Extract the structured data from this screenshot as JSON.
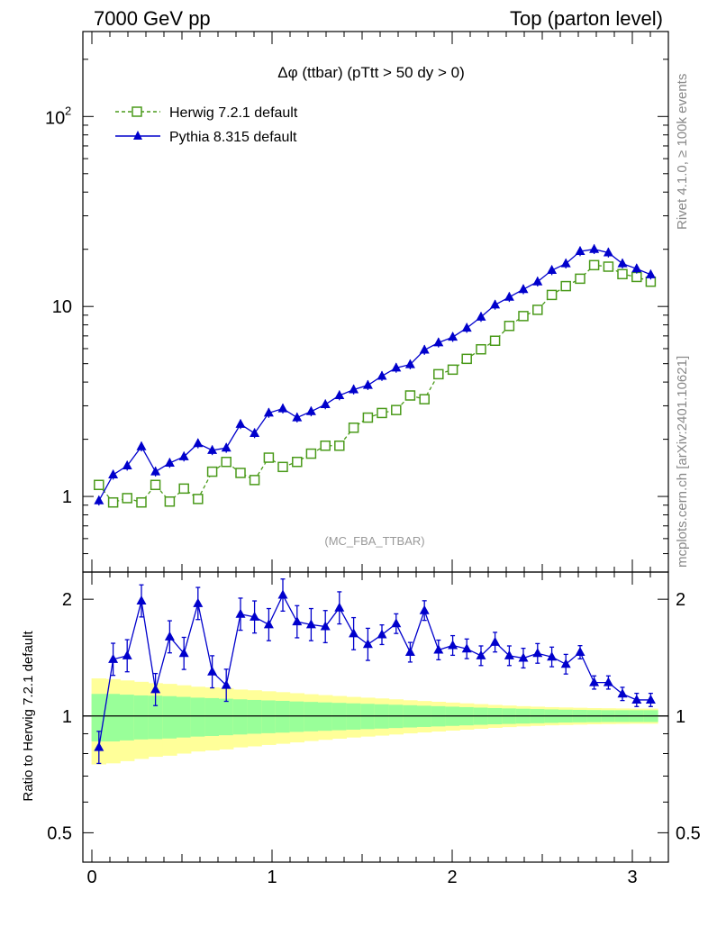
{
  "header": {
    "left": "7000 GeV pp",
    "right": "Top (parton level)"
  },
  "side": {
    "rivet": "Rivet 4.1.0, ≥ 100k events",
    "mcplots": "mcplots.cern.ch [arXiv:2401.10621]"
  },
  "colors": {
    "herwig": "#4a9a1a",
    "pythia": "#0000cc",
    "band_inner": "#99ff99",
    "band_outer": "#ffff99"
  },
  "chart_data": [
    {
      "type": "line",
      "title": "Δφ (ttbar) (pTtt > 50 dy > 0)",
      "watermark": "(MC_FBA_TTBAR)",
      "yscale": "log",
      "ylim": [
        0.4,
        280
      ],
      "xlim": [
        -0.05,
        3.2
      ],
      "ytick_labels": [
        "1",
        "10",
        "10^2"
      ],
      "legend_position": "top-left",
      "series": [
        {
          "name": "Herwig 7.2.1 default",
          "marker": "open-square",
          "linestyle": "dashed",
          "x": [
            0.039,
            0.118,
            0.196,
            0.275,
            0.353,
            0.432,
            0.511,
            0.589,
            0.668,
            0.746,
            0.825,
            0.903,
            0.982,
            1.06,
            1.139,
            1.217,
            1.296,
            1.374,
            1.453,
            1.532,
            1.61,
            1.689,
            1.767,
            1.846,
            1.924,
            2.003,
            2.081,
            2.16,
            2.238,
            2.317,
            2.395,
            2.474,
            2.553,
            2.631,
            2.71,
            2.788,
            2.867,
            2.945,
            3.024,
            3.102
          ],
          "y": [
            1.15,
            0.93,
            0.98,
            0.93,
            1.15,
            0.94,
            1.1,
            0.97,
            1.35,
            1.52,
            1.33,
            1.22,
            1.6,
            1.43,
            1.52,
            1.68,
            1.85,
            1.85,
            2.3,
            2.6,
            2.75,
            2.85,
            3.4,
            3.25,
            4.4,
            4.65,
            5.3,
            5.95,
            6.6,
            7.9,
            8.9,
            9.6,
            11.5,
            12.8,
            14,
            16.5,
            16.2,
            14.8,
            14.3,
            13.5
          ]
        },
        {
          "name": "Pythia 8.315 default",
          "marker": "filled-triangle",
          "linestyle": "solid",
          "x": [
            0.039,
            0.118,
            0.196,
            0.275,
            0.353,
            0.432,
            0.511,
            0.589,
            0.668,
            0.746,
            0.825,
            0.903,
            0.982,
            1.06,
            1.139,
            1.217,
            1.296,
            1.374,
            1.453,
            1.532,
            1.61,
            1.689,
            1.767,
            1.846,
            1.924,
            2.003,
            2.081,
            2.16,
            2.238,
            2.317,
            2.395,
            2.474,
            2.553,
            2.631,
            2.71,
            2.788,
            2.867,
            2.945,
            3.024,
            3.102
          ],
          "y": [
            0.95,
            1.3,
            1.45,
            1.83,
            1.35,
            1.5,
            1.62,
            1.9,
            1.75,
            1.8,
            2.4,
            2.15,
            2.75,
            2.9,
            2.6,
            2.8,
            3.05,
            3.4,
            3.65,
            3.85,
            4.3,
            4.75,
            4.95,
            5.9,
            6.45,
            6.9,
            7.7,
            8.8,
            10.2,
            11.2,
            12.3,
            13.5,
            15.5,
            16.8,
            19.5,
            20,
            19.2,
            16.8,
            15.8,
            14.7
          ]
        }
      ]
    },
    {
      "type": "line",
      "ylabel": "Ratio to Herwig 7.2.1 default",
      "yscale": "log",
      "ylim": [
        0.42,
        2.35
      ],
      "xlim": [
        -0.05,
        3.2
      ],
      "x_tick_labels": [
        "0",
        "1",
        "2",
        "3"
      ],
      "y_tick_labels": [
        "0.5",
        "1",
        "2"
      ],
      "ratio_x": [
        0.039,
        0.118,
        0.196,
        0.275,
        0.353,
        0.432,
        0.511,
        0.589,
        0.668,
        0.746,
        0.825,
        0.903,
        0.982,
        1.06,
        1.139,
        1.217,
        1.296,
        1.374,
        1.453,
        1.532,
        1.61,
        1.689,
        1.767,
        1.846,
        1.924,
        2.003,
        2.081,
        2.16,
        2.238,
        2.317,
        2.395,
        2.474,
        2.553,
        2.631,
        2.71,
        2.788,
        2.867,
        2.945,
        3.024,
        3.102
      ],
      "ratio_y": [
        0.83,
        1.4,
        1.43,
        1.98,
        1.17,
        1.6,
        1.45,
        1.95,
        1.3,
        1.2,
        1.83,
        1.8,
        1.72,
        2.05,
        1.75,
        1.72,
        1.7,
        1.9,
        1.63,
        1.53,
        1.62,
        1.73,
        1.46,
        1.87,
        1.48,
        1.52,
        1.49,
        1.43,
        1.55,
        1.43,
        1.41,
        1.45,
        1.42,
        1.36,
        1.46,
        1.22,
        1.22,
        1.14,
        1.1,
        1.1
      ],
      "band_inner": [
        0.14,
        0.14,
        0.135,
        0.13,
        0.128,
        0.125,
        0.12,
        0.115,
        0.112,
        0.108,
        0.104,
        0.1,
        0.097,
        0.094,
        0.09,
        0.087,
        0.084,
        0.081,
        0.078,
        0.075,
        0.072,
        0.069,
        0.066,
        0.063,
        0.06,
        0.057,
        0.054,
        0.051,
        0.048,
        0.046,
        0.044,
        0.042,
        0.04,
        0.038,
        0.037,
        0.036,
        0.035,
        0.035,
        0.035,
        0.035
      ],
      "band_outer": [
        0.25,
        0.245,
        0.235,
        0.225,
        0.215,
        0.21,
        0.2,
        0.19,
        0.185,
        0.18,
        0.17,
        0.165,
        0.158,
        0.152,
        0.145,
        0.138,
        0.132,
        0.126,
        0.12,
        0.115,
        0.11,
        0.104,
        0.098,
        0.093,
        0.088,
        0.083,
        0.078,
        0.073,
        0.068,
        0.064,
        0.06,
        0.057,
        0.054,
        0.052,
        0.05,
        0.048,
        0.047,
        0.046,
        0.045,
        0.045
      ]
    }
  ]
}
